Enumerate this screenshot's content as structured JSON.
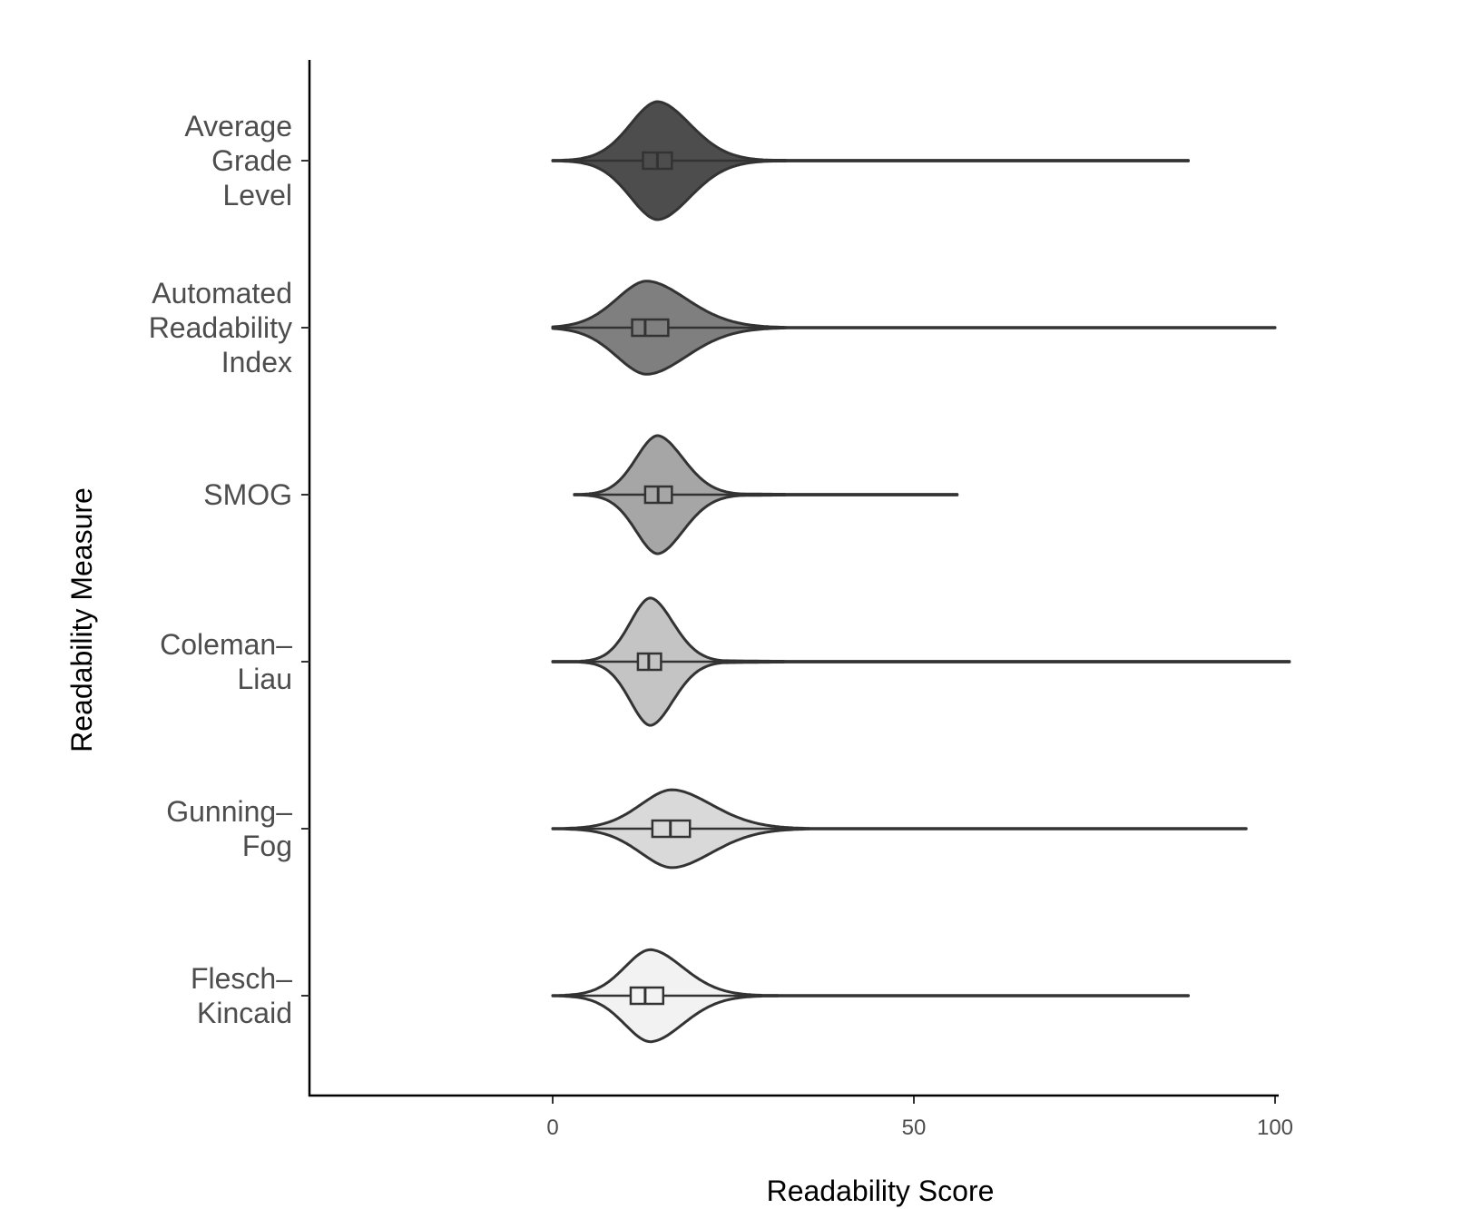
{
  "chart_data": {
    "type": "violin",
    "orientation": "horizontal",
    "xlabel": "Readability Score",
    "ylabel": "Readability Measure",
    "xlim": [
      -33.5,
      101
    ],
    "x_ticks": [
      0,
      50,
      100
    ],
    "grid": false,
    "legend": "none",
    "categories": [
      {
        "label_lines": [
          "Average",
          "Grade",
          "Level"
        ],
        "fill": "#4d4d4d",
        "min": 0,
        "max": 88,
        "mode": 14.5,
        "q1": 12.5,
        "median": 14.5,
        "q3": 16.5,
        "width": 1.0,
        "spread_low": 3.8,
        "spread_high": 4.6
      },
      {
        "label_lines": [
          "Automated",
          "Readability",
          "Index"
        ],
        "fill": "#7f7f7f",
        "min": 0,
        "max": 100,
        "mode": 13,
        "q1": 11,
        "median": 12.8,
        "q3": 16,
        "width": 0.79,
        "spread_low": 4.2,
        "spread_high": 5.6
      },
      {
        "label_lines": [
          "SMOG"
        ],
        "fill": "#a6a6a6",
        "min": 3,
        "max": 56,
        "mode": 14.5,
        "q1": 12.8,
        "median": 14.6,
        "q3": 16.5,
        "width": 1.0,
        "spread_low": 3.0,
        "spread_high": 3.6
      },
      {
        "label_lines": [
          "Coleman–",
          "Liau"
        ],
        "fill": "#c4c4c4",
        "min": 0,
        "max": 102,
        "mode": 13.5,
        "q1": 11.8,
        "median": 13.3,
        "q3": 15,
        "width": 1.08,
        "spread_low": 2.8,
        "spread_high": 3.2
      },
      {
        "label_lines": [
          "Gunning–",
          "Fog"
        ],
        "fill": "#d9d9d9",
        "min": 0,
        "max": 96,
        "mode": 16.5,
        "q1": 13.8,
        "median": 16.3,
        "q3": 19,
        "width": 0.66,
        "spread_low": 4.4,
        "spread_high": 5.6
      },
      {
        "label_lines": [
          "Flesch–",
          "Kincaid"
        ],
        "fill": "#f2f2f2",
        "min": 0,
        "max": 88,
        "mode": 13.5,
        "q1": 10.8,
        "median": 12.8,
        "q3": 15.3,
        "width": 0.78,
        "spread_low": 3.6,
        "spread_high": 4.6
      }
    ]
  }
}
